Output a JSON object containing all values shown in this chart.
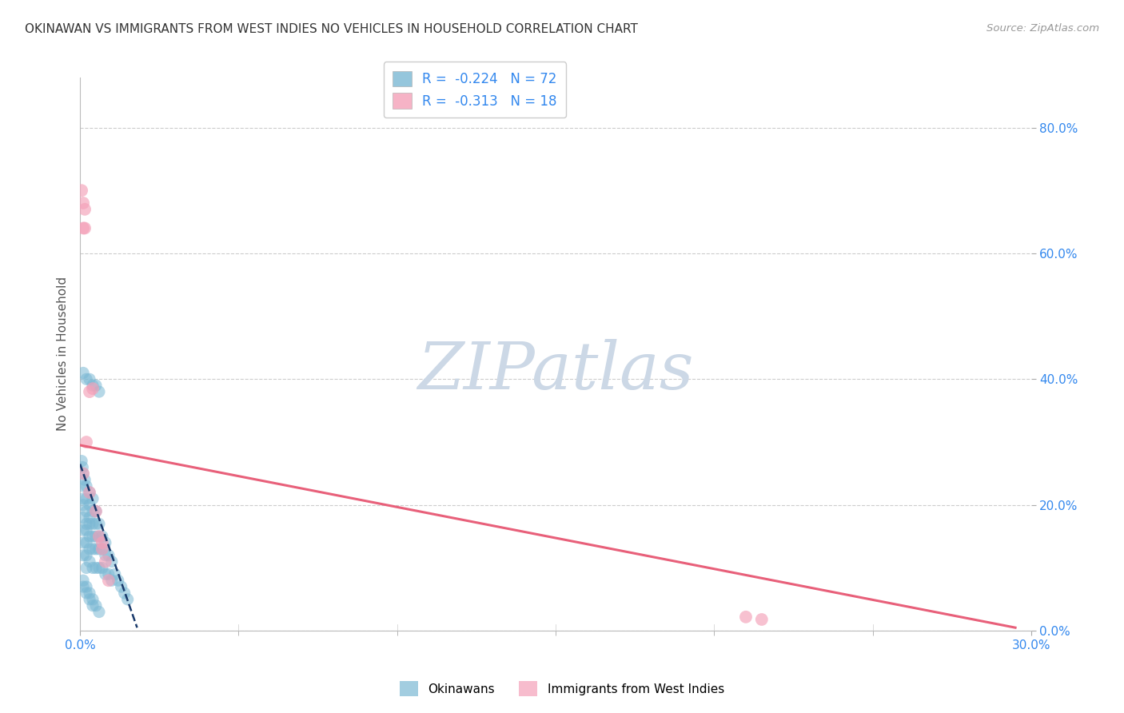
{
  "title": "OKINAWAN VS IMMIGRANTS FROM WEST INDIES NO VEHICLES IN HOUSEHOLD CORRELATION CHART",
  "source": "Source: ZipAtlas.com",
  "ylabel": "No Vehicles in Household",
  "legend_label_blue": "Okinawans",
  "legend_label_pink": "Immigrants from West Indies",
  "r_blue": -0.224,
  "n_blue": 72,
  "r_pink": -0.313,
  "n_pink": 18,
  "xlim": [
    0.0,
    0.3
  ],
  "ylim": [
    0.0,
    0.88
  ],
  "xtick_positions": [
    0.0,
    0.3
  ],
  "xtick_labels": [
    "0.0%",
    "30.0%"
  ],
  "ytick_positions": [
    0.0,
    0.2,
    0.4,
    0.6,
    0.8
  ],
  "ytick_labels": [
    "0.0%",
    "20.0%",
    "40.0%",
    "60.0%",
    "80.0%"
  ],
  "color_blue": "#7bb8d4",
  "color_pink": "#f4a0b8",
  "color_trend_blue": "#1a3a6b",
  "color_trend_pink": "#e8607a",
  "background_color": "#ffffff",
  "grid_color": "#cccccc",
  "blue_x": [
    0.0005,
    0.0008,
    0.001,
    0.001,
    0.001,
    0.001,
    0.001,
    0.001,
    0.001,
    0.001,
    0.0015,
    0.002,
    0.002,
    0.002,
    0.002,
    0.002,
    0.002,
    0.002,
    0.002,
    0.003,
    0.003,
    0.003,
    0.003,
    0.003,
    0.003,
    0.003,
    0.004,
    0.004,
    0.004,
    0.004,
    0.004,
    0.004,
    0.005,
    0.005,
    0.005,
    0.005,
    0.005,
    0.006,
    0.006,
    0.006,
    0.006,
    0.007,
    0.007,
    0.007,
    0.008,
    0.008,
    0.008,
    0.009,
    0.009,
    0.01,
    0.01,
    0.011,
    0.012,
    0.013,
    0.014,
    0.015,
    0.001,
    0.002,
    0.003,
    0.004,
    0.005,
    0.006,
    0.001,
    0.001,
    0.002,
    0.002,
    0.003,
    0.003,
    0.004,
    0.004,
    0.005,
    0.006
  ],
  "blue_y": [
    0.27,
    0.26,
    0.25,
    0.23,
    0.21,
    0.2,
    0.18,
    0.16,
    0.14,
    0.12,
    0.24,
    0.23,
    0.21,
    0.19,
    0.17,
    0.16,
    0.14,
    0.12,
    0.1,
    0.22,
    0.2,
    0.18,
    0.17,
    0.15,
    0.13,
    0.11,
    0.21,
    0.19,
    0.17,
    0.15,
    0.13,
    0.1,
    0.19,
    0.17,
    0.15,
    0.13,
    0.1,
    0.17,
    0.15,
    0.13,
    0.1,
    0.15,
    0.13,
    0.1,
    0.14,
    0.12,
    0.09,
    0.12,
    0.09,
    0.11,
    0.08,
    0.09,
    0.08,
    0.07,
    0.06,
    0.05,
    0.41,
    0.4,
    0.4,
    0.39,
    0.39,
    0.38,
    0.08,
    0.07,
    0.07,
    0.06,
    0.06,
    0.05,
    0.05,
    0.04,
    0.04,
    0.03
  ],
  "pink_x": [
    0.0005,
    0.001,
    0.001,
    0.0015,
    0.0015,
    0.002,
    0.003,
    0.004,
    0.005,
    0.006,
    0.007,
    0.008,
    0.009,
    0.003,
    0.007,
    0.21,
    0.215,
    0.001
  ],
  "pink_y": [
    0.7,
    0.68,
    0.64,
    0.67,
    0.64,
    0.3,
    0.38,
    0.385,
    0.19,
    0.15,
    0.14,
    0.11,
    0.08,
    0.22,
    0.13,
    0.022,
    0.018,
    0.25
  ],
  "blue_trend_x0": 0.0,
  "blue_trend_y0": 0.265,
  "blue_trend_x1": 0.018,
  "blue_trend_y1": 0.005,
  "pink_trend_x0": 0.0,
  "pink_trend_y0": 0.295,
  "pink_trend_x1": 0.295,
  "pink_trend_y1": 0.005
}
